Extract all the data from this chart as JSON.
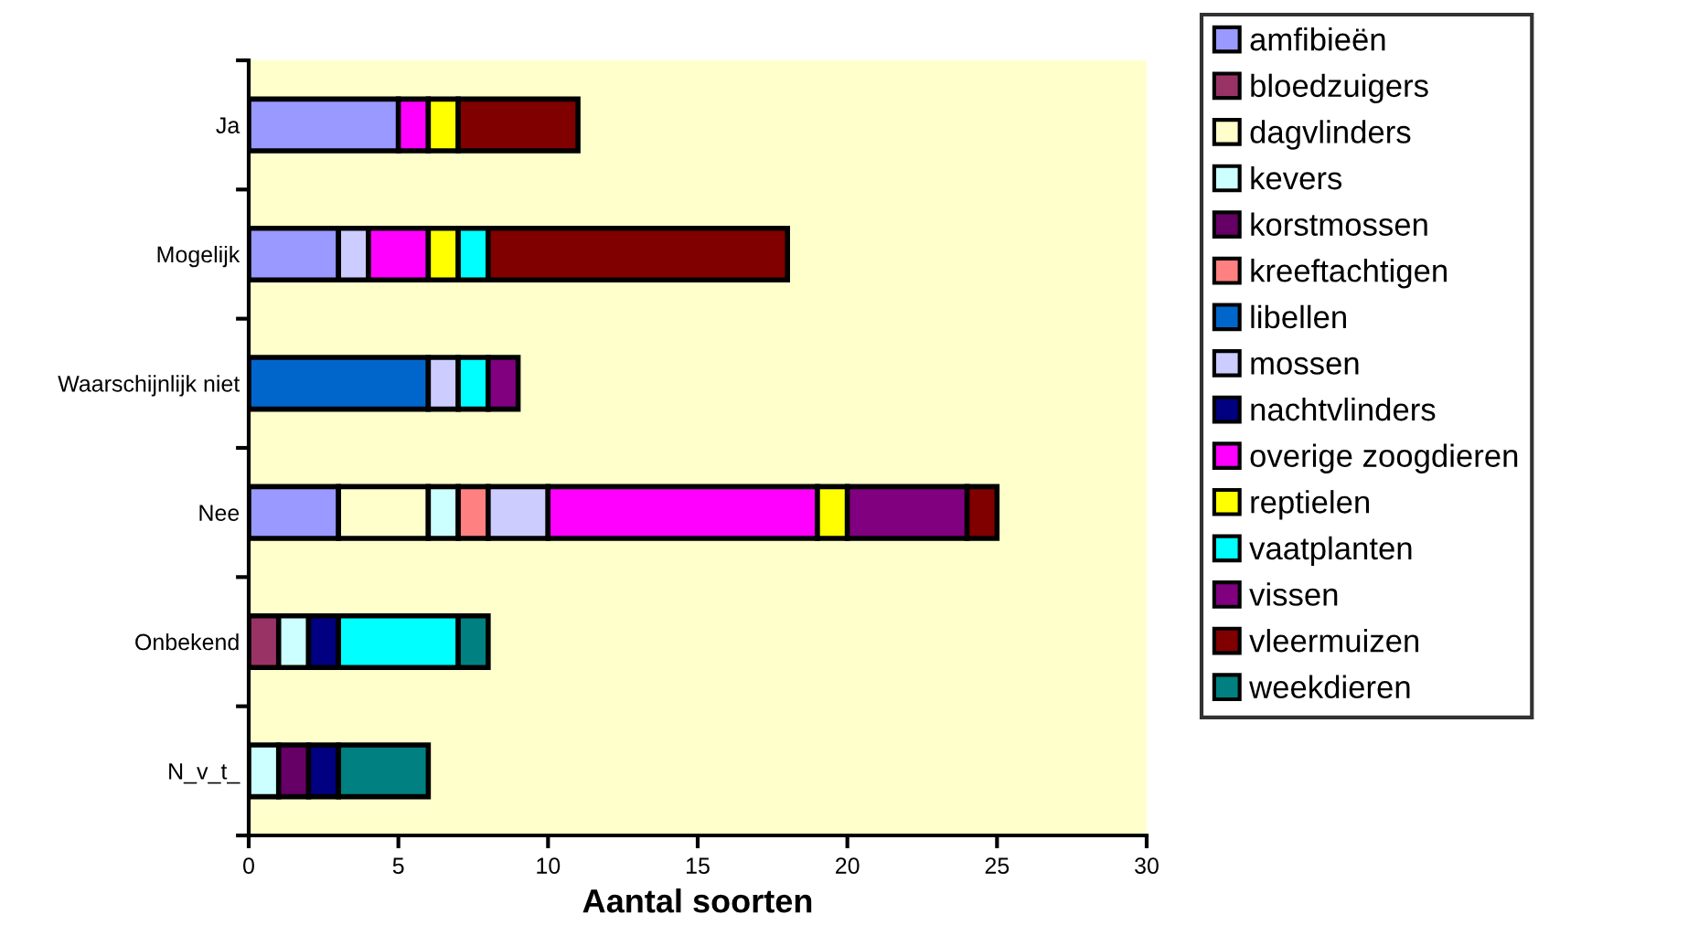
{
  "chart_data": {
    "type": "bar",
    "orientation": "horizontal",
    "stacked": true,
    "xlabel": "Aantal soorten",
    "categories": [
      "Ja",
      "Mogelijk",
      "Waarschijnlijk niet",
      "Nee",
      "Onbekend",
      "N_v_t_"
    ],
    "xlim": [
      0,
      30
    ],
    "xticks": [
      0,
      5,
      10,
      15,
      20,
      25,
      30
    ],
    "grid": false,
    "legend": "right",
    "series": [
      {
        "name": "amfibieën",
        "color": "#9999ff",
        "values": [
          5,
          3,
          null,
          3,
          null,
          null
        ]
      },
      {
        "name": "bloedzuigers",
        "color": "#993366",
        "values": [
          null,
          null,
          null,
          null,
          1,
          null
        ]
      },
      {
        "name": "dagvlinders",
        "color": "#ffffcc",
        "values": [
          null,
          null,
          null,
          3,
          null,
          null
        ]
      },
      {
        "name": "kevers",
        "color": "#ccffff",
        "values": [
          null,
          null,
          null,
          1,
          1,
          1
        ]
      },
      {
        "name": "korstmossen",
        "color": "#660066",
        "values": [
          null,
          null,
          null,
          null,
          null,
          1
        ]
      },
      {
        "name": "kreeftachtigen",
        "color": "#ff8080",
        "values": [
          null,
          null,
          null,
          1,
          null,
          null
        ]
      },
      {
        "name": "libellen",
        "color": "#0066cc",
        "values": [
          null,
          null,
          6,
          null,
          null,
          null
        ]
      },
      {
        "name": "mossen",
        "color": "#ccccff",
        "values": [
          null,
          1,
          1,
          2,
          null,
          null
        ]
      },
      {
        "name": "nachtvlinders",
        "color": "#000080",
        "values": [
          null,
          null,
          null,
          null,
          1,
          1
        ]
      },
      {
        "name": "overige zoogdieren",
        "color": "#ff00ff",
        "values": [
          1,
          2,
          null,
          9,
          null,
          null
        ]
      },
      {
        "name": "reptielen",
        "color": "#ffff00",
        "values": [
          1,
          1,
          null,
          1,
          null,
          null
        ]
      },
      {
        "name": "vaatplanten",
        "color": "#00ffff",
        "values": [
          null,
          1,
          1,
          null,
          4,
          null
        ]
      },
      {
        "name": "vissen",
        "color": "#800080",
        "values": [
          null,
          null,
          1,
          4,
          null,
          null
        ]
      },
      {
        "name": "vleermuizen",
        "color": "#800000",
        "values": [
          4,
          10,
          null,
          1,
          null,
          null
        ]
      },
      {
        "name": "weekdieren",
        "color": "#008080",
        "values": [
          null,
          null,
          null,
          null,
          1,
          3
        ]
      }
    ]
  }
}
